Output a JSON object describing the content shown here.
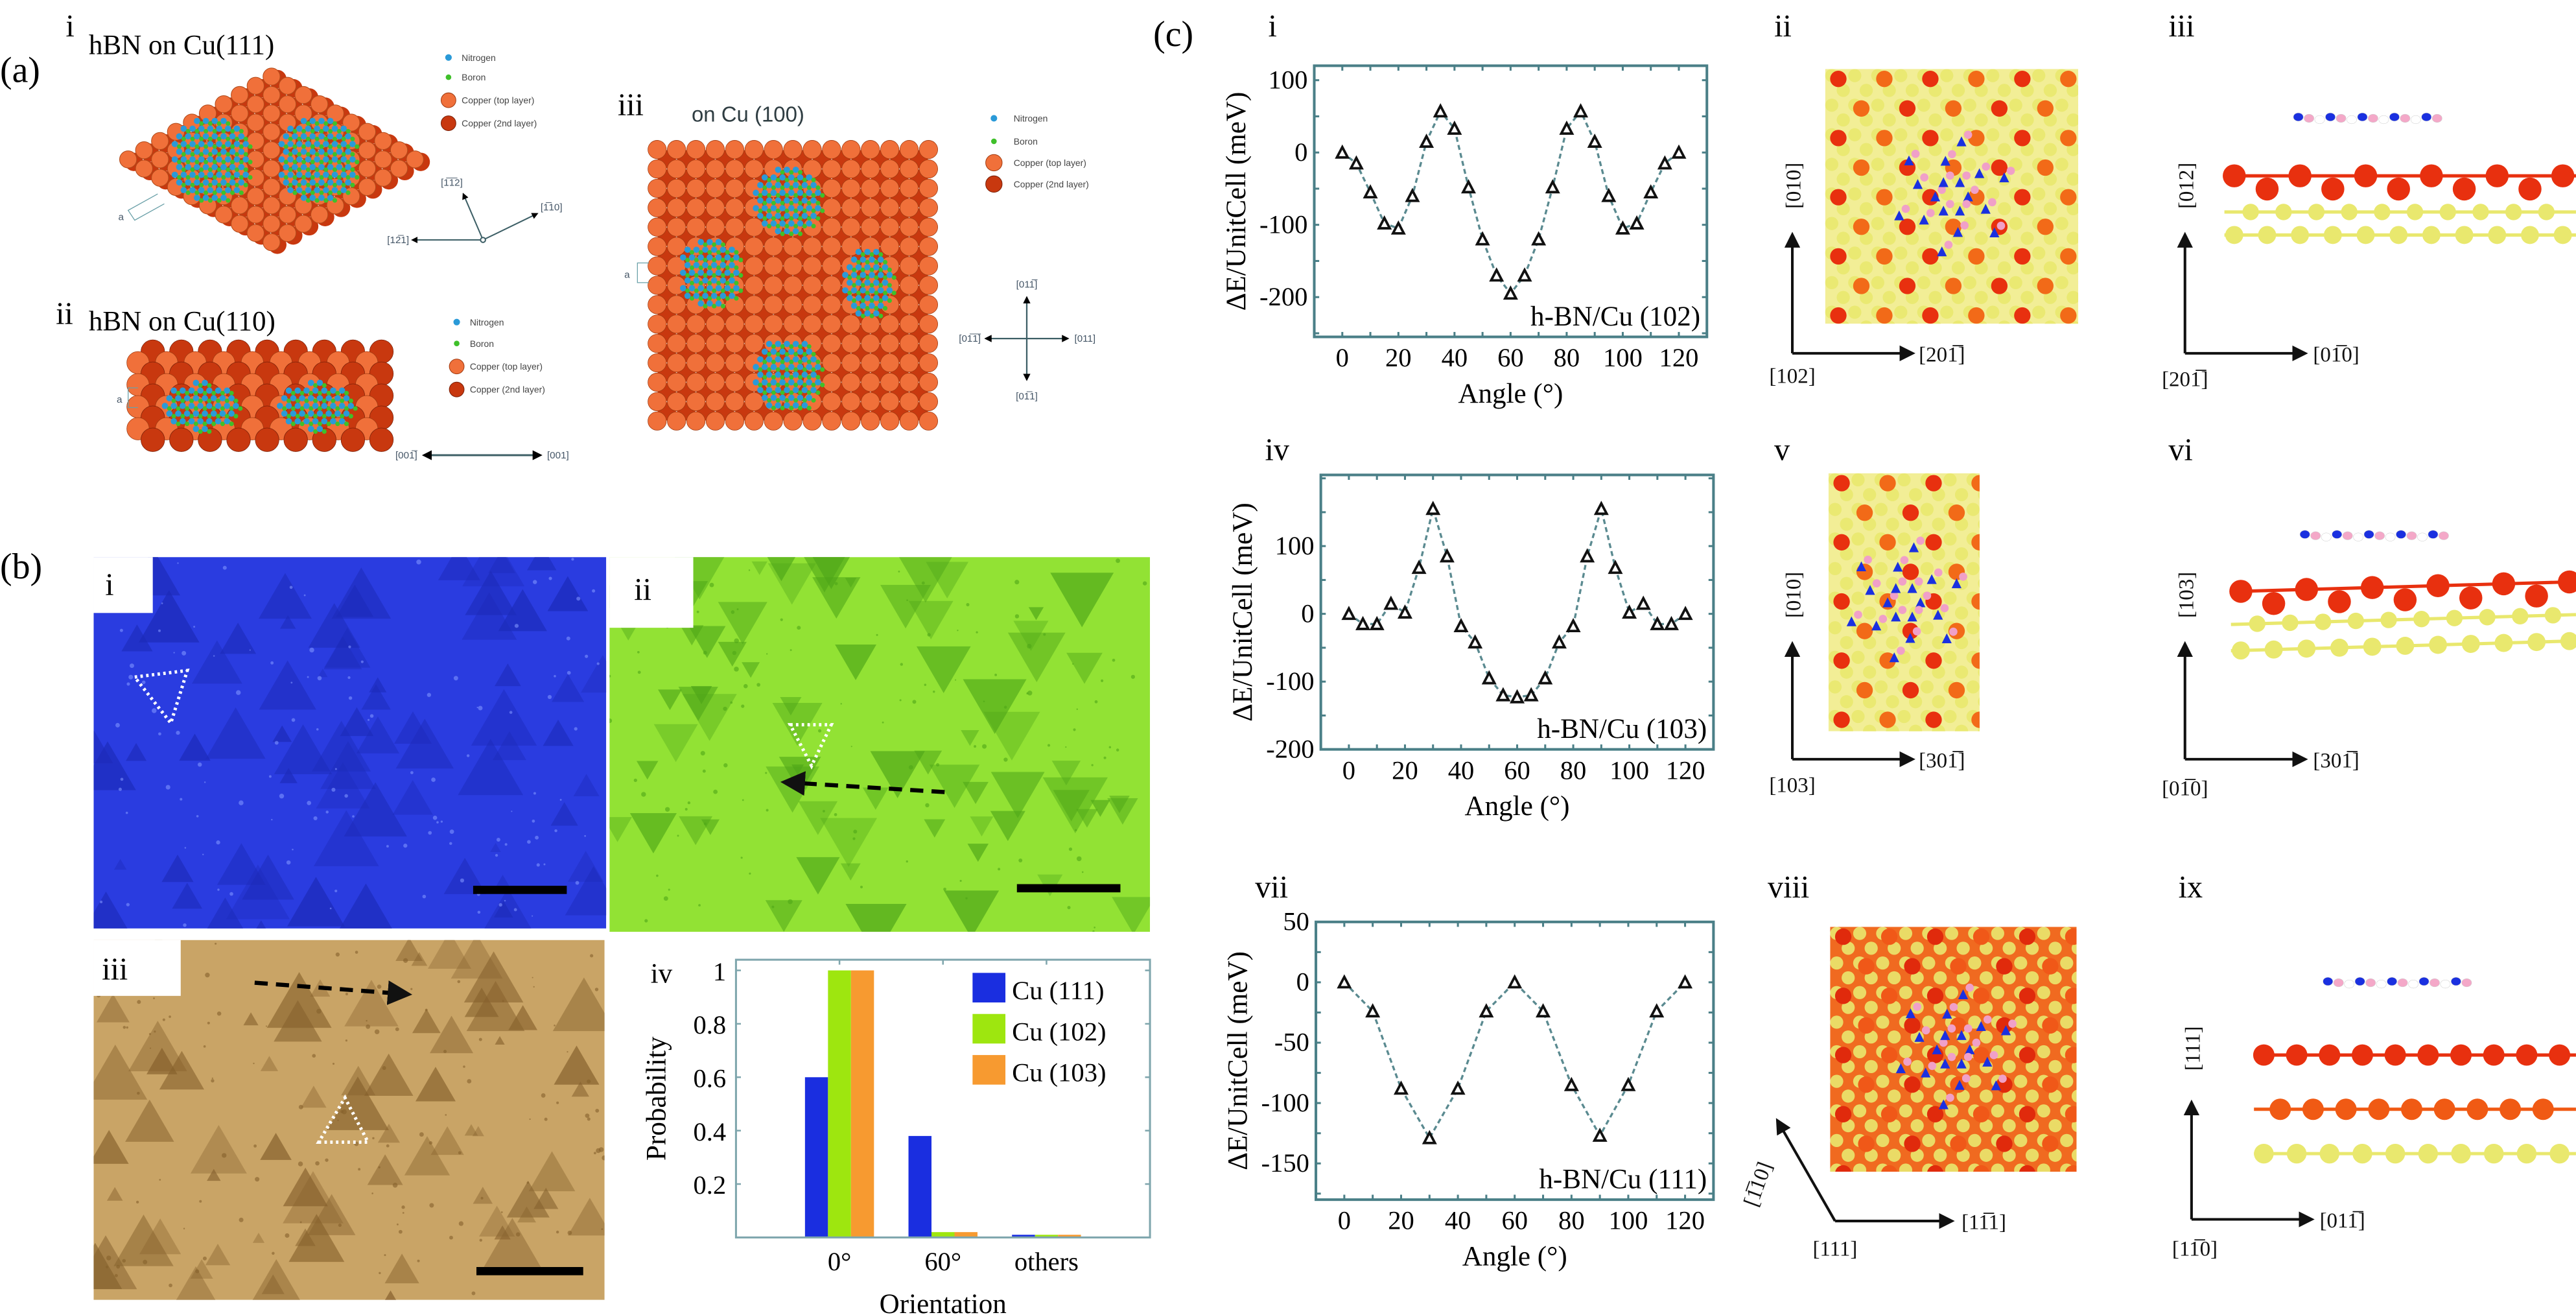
{
  "figure": {
    "panel_a": {
      "label": "(a)",
      "lattice_constant_label": "a",
      "legend": [
        "Nitrogen",
        "Boron",
        "Copper (top layer)",
        "Copper (2nd layer)"
      ],
      "i": {
        "label": "i",
        "title": "hBN on Cu(111)",
        "directions": [
          "[1̅1̅2]",
          "[1̅10]",
          "[12̅1]"
        ]
      },
      "ii": {
        "label": "ii",
        "title": "hBN on Cu(110)",
        "directions": [
          "[001̅]",
          "[001]"
        ]
      },
      "iii": {
        "label": "iii",
        "title": "on Cu (100)",
        "directions": [
          "[011̅]",
          "[01̅1̅]",
          "[011]",
          "[01̅1]"
        ]
      }
    },
    "panel_b": {
      "label": "(b)",
      "sublabels": [
        "i",
        "ii",
        "iii",
        "iv"
      ]
    },
    "panel_c": {
      "label": "(c)",
      "sublabels": [
        "i",
        "ii",
        "iii",
        "iv",
        "v",
        "vi",
        "vii",
        "viii",
        "ix"
      ],
      "directions": {
        "ii": [
          "[010]",
          "[201̅]",
          "[102]"
        ],
        "iii": [
          "[012]",
          "[01̅0]",
          "[201̅]"
        ],
        "v": [
          "[010]",
          "[301̅]",
          "[103]"
        ],
        "vi": [
          "[103]",
          "[301̅]",
          "[01̅0]"
        ],
        "viii": [
          "[1̅10]",
          "[11̅1]",
          "[111]"
        ],
        "ix": [
          "[111]",
          "[011̅]",
          "[11̅0]"
        ]
      }
    }
  },
  "colors": {
    "nitrogen": "#2a9ad8",
    "boron": "#3fc02a",
    "copper_top": "#f0703a",
    "copper_2nd": "#c8380f",
    "axis": "#4a7f87",
    "cu111": "#1a2ee0",
    "cu102": "#9ee60f",
    "cu103": "#f79a30"
  },
  "chart_data": [
    {
      "id": "c-i",
      "type": "line",
      "xlabel": "Angle (°)",
      "ylabel": "ΔE/UnitCell (meV)",
      "annotation": "h-BN/Cu (102)",
      "xlim": [
        -10,
        130
      ],
      "ylim": [
        -255,
        120
      ],
      "xticks": [
        0,
        20,
        40,
        60,
        80,
        100,
        120
      ],
      "yticks": [
        -200,
        -100,
        0,
        100
      ],
      "marker": "triangle",
      "line": "dashed",
      "x": [
        0,
        5,
        10,
        15,
        20,
        25,
        30,
        35,
        40,
        45,
        50,
        55,
        60,
        65,
        70,
        75,
        80,
        85,
        90,
        95,
        100,
        105,
        110,
        115,
        120
      ],
      "y": [
        0,
        -15,
        -55,
        -98,
        -105,
        -60,
        15,
        57,
        33,
        -48,
        -120,
        -170,
        -195,
        -170,
        -120,
        -48,
        33,
        57,
        15,
        -60,
        -105,
        -98,
        -55,
        -15,
        0
      ]
    },
    {
      "id": "c-iv",
      "type": "line",
      "xlabel": "Angle (°)",
      "ylabel": "ΔE/UnitCell (meV)",
      "annotation": "h-BN/Cu (103)",
      "xlim": [
        -10,
        130
      ],
      "ylim": [
        -200,
        205
      ],
      "xticks": [
        0,
        20,
        40,
        60,
        80,
        100,
        120
      ],
      "yticks": [
        -200,
        -100,
        0,
        100
      ],
      "marker": "triangle",
      "line": "dashed",
      "x": [
        0,
        5,
        10,
        15,
        20,
        25,
        30,
        35,
        40,
        45,
        50,
        55,
        60,
        65,
        70,
        75,
        80,
        85,
        90,
        95,
        100,
        105,
        110,
        115,
        120
      ],
      "y": [
        0,
        -15,
        -15,
        15,
        2,
        68,
        155,
        85,
        -18,
        -42,
        -95,
        -120,
        -123,
        -120,
        -95,
        -42,
        -18,
        85,
        155,
        68,
        2,
        15,
        -15,
        -15,
        0
      ]
    },
    {
      "id": "c-vii",
      "type": "line",
      "xlabel": "Angle (°)",
      "ylabel": "ΔE/UnitCell (meV)",
      "annotation": "h-BN/Cu (111)",
      "xlim": [
        -10,
        130
      ],
      "ylim": [
        -180,
        50
      ],
      "xticks": [
        0,
        20,
        40,
        60,
        80,
        100,
        120
      ],
      "yticks": [
        -150,
        -100,
        -50,
        0,
        50
      ],
      "marker": "triangle",
      "line": "dashed",
      "x": [
        0,
        10,
        20,
        30,
        40,
        50,
        60,
        70,
        80,
        90,
        100,
        110,
        120
      ],
      "y": [
        0,
        -24,
        -88,
        -129,
        -88,
        -24,
        0,
        -24,
        -85,
        -127,
        -85,
        -24,
        0
      ]
    },
    {
      "id": "b-iv",
      "type": "bar",
      "xlabel": "Orientation",
      "ylabel": "Probability",
      "categories": [
        "0°",
        "60°",
        "others"
      ],
      "ylim": [
        0,
        1.04
      ],
      "yticks": [
        0.2,
        0.4,
        0.6,
        0.8,
        1
      ],
      "legend_position": "top-right",
      "series": [
        {
          "name": "Cu (111)",
          "color": "#1a2ee0",
          "values": [
            0.6,
            0.38,
            0.01
          ]
        },
        {
          "name": "Cu (102)",
          "color": "#9ee60f",
          "values": [
            1.0,
            0.02,
            0.01
          ]
        },
        {
          "name": "Cu (103)",
          "color": "#f79a30",
          "values": [
            1.0,
            0.02,
            0.01
          ]
        }
      ]
    }
  ]
}
